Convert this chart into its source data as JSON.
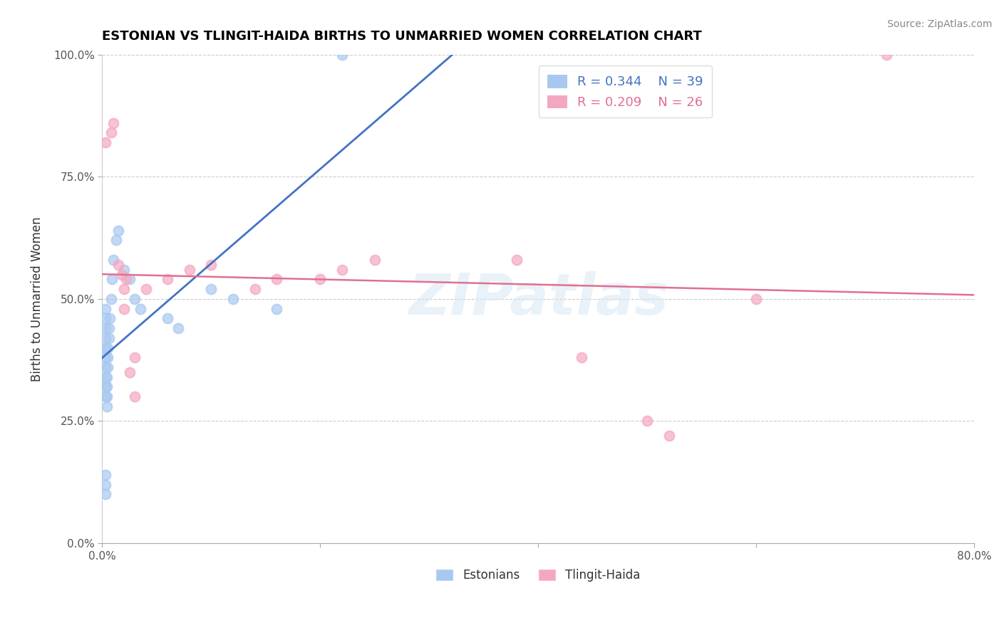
{
  "title": "ESTONIAN VS TLINGIT-HAIDA BIRTHS TO UNMARRIED WOMEN CORRELATION CHART",
  "source": "Source: ZipAtlas.com",
  "xlabel_label": "Estonians",
  "ylabel_label": "Births to Unmarried Women",
  "xlabel2_label": "Tlingit-Haida",
  "xlim": [
    0.0,
    0.8
  ],
  "ylim": [
    0.0,
    1.0
  ],
  "xticks": [
    0.0,
    0.2,
    0.4,
    0.6,
    0.8
  ],
  "xticklabels": [
    "0.0%",
    "",
    "",
    "",
    "80.0%"
  ],
  "yticks": [
    0.0,
    0.25,
    0.5,
    0.75,
    1.0
  ],
  "yticklabels": [
    "0.0%",
    "25.0%",
    "50.0%",
    "75.0%",
    "100.0%"
  ],
  "legend_r1": "R = 0.344",
  "legend_n1": "N = 39",
  "legend_r2": "R = 0.209",
  "legend_n2": "N = 26",
  "blue_color": "#A8C8F0",
  "pink_color": "#F4A8C0",
  "blue_line_color": "#4472C4",
  "pink_line_color": "#E07090",
  "watermark": "ZIPatlas",
  "blue_scatter_x": [
    0.003,
    0.003,
    0.003,
    0.003,
    0.004,
    0.004,
    0.004,
    0.005,
    0.005,
    0.005,
    0.005,
    0.005,
    0.005,
    0.005,
    0.005,
    0.006,
    0.006,
    0.007,
    0.007,
    0.008,
    0.008,
    0.009,
    0.01,
    0.012,
    0.015,
    0.016,
    0.018,
    0.02,
    0.025,
    0.03,
    0.04,
    0.05,
    0.07,
    0.08,
    0.1,
    0.12,
    0.16,
    0.22,
    0.003
  ],
  "blue_scatter_y": [
    0.3,
    0.32,
    0.34,
    0.36,
    0.38,
    0.4,
    0.42,
    0.28,
    0.3,
    0.32,
    0.34,
    0.36,
    0.38,
    0.4,
    0.42,
    0.44,
    0.46,
    0.48,
    0.5,
    0.52,
    0.54,
    0.56,
    0.6,
    0.62,
    0.64,
    0.66,
    0.56,
    0.54,
    0.52,
    0.5,
    0.48,
    0.46,
    0.44,
    0.54,
    0.5,
    0.48,
    0.46,
    0.44,
    1.0
  ],
  "pink_scatter_x": [
    0.005,
    0.01,
    0.01,
    0.012,
    0.015,
    0.018,
    0.02,
    0.022,
    0.025,
    0.03,
    0.04,
    0.06,
    0.08,
    0.1,
    0.12,
    0.14,
    0.16,
    0.2,
    0.22,
    0.25,
    0.38,
    0.44,
    0.5,
    0.52,
    0.6,
    0.72
  ],
  "pink_scatter_y": [
    0.8,
    0.86,
    0.84,
    0.57,
    0.55,
    0.52,
    0.48,
    0.52,
    0.35,
    0.38,
    0.52,
    0.52,
    0.54,
    0.56,
    0.57,
    0.52,
    0.54,
    0.54,
    0.56,
    0.58,
    0.58,
    0.38,
    0.25,
    0.22,
    0.5,
    1.0
  ]
}
